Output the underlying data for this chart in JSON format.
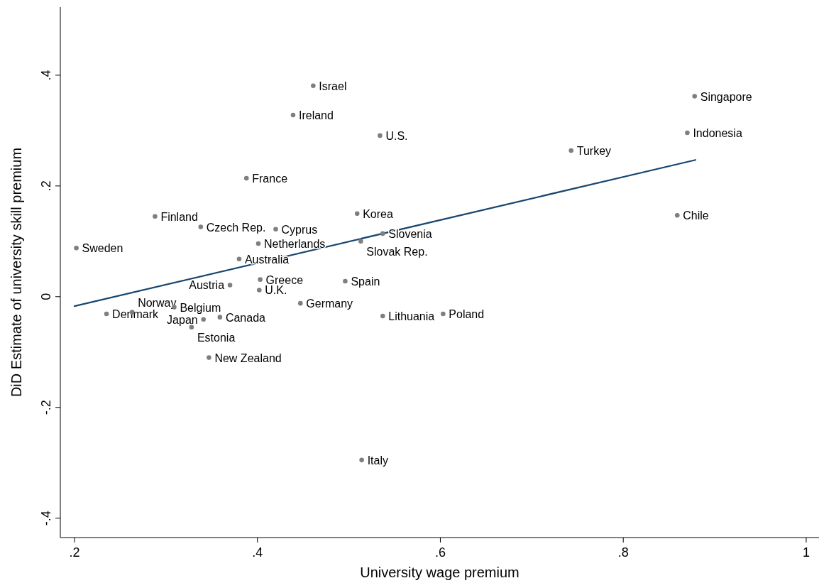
{
  "chart_data": {
    "type": "scatter",
    "xlabel": "University wage premium",
    "ylabel": "DiD Estimate of university skill premium",
    "xlim": [
      0.1845,
      1.014
    ],
    "ylim": [
      -0.435,
      0.523
    ],
    "xticks": [
      {
        "value": 0.2,
        "label": ".2"
      },
      {
        "value": 0.4,
        "label": ".4"
      },
      {
        "value": 0.6,
        "label": ".6"
      },
      {
        "value": 0.8,
        "label": ".8"
      },
      1
    ],
    "yticks": [
      {
        "value": -0.4,
        "label": "-.4"
      },
      {
        "value": -0.2,
        "label": "-.2"
      },
      0,
      {
        "value": 0.2,
        "label": ".2"
      },
      {
        "value": 0.4,
        "label": ".4"
      }
    ],
    "grid": false,
    "marker": "circle",
    "series": [
      {
        "color": "#7f7f7f",
        "x": [
          0.461,
          0.439,
          0.534,
          0.388,
          0.878,
          0.87,
          0.743,
          0.859,
          0.288,
          0.509,
          0.338,
          0.42,
          0.202,
          0.537,
          0.401,
          0.513,
          0.38,
          0.403,
          0.496,
          0.37,
          0.402,
          0.447,
          0.309,
          0.235,
          0.263,
          0.359,
          0.341,
          0.537,
          0.603,
          0.328,
          0.347,
          0.514
        ],
        "values": [
          0.381,
          0.328,
          0.291,
          0.214,
          0.362,
          0.296,
          0.264,
          0.147,
          0.145,
          0.15,
          0.126,
          0.122,
          0.088,
          0.114,
          0.096,
          0.1,
          0.068,
          0.031,
          0.028,
          0.021,
          0.012,
          -0.012,
          -0.019,
          -0.031,
          -0.028,
          -0.037,
          -0.041,
          -0.035,
          -0.031,
          -0.055,
          -0.11,
          -0.295
        ]
      },
      {
        "type": "line",
        "color": "#1a476f",
        "x": [
          0.2,
          0.879
        ],
        "values": [
          -0.017,
          0.247
        ],
        "marker": "none",
        "line_style": "solid"
      }
    ],
    "annotations": [
      {
        "text": "Israel",
        "x": 0.461,
        "y": 0.381
      },
      {
        "text": "Ireland",
        "x": 0.439,
        "y": 0.328
      },
      {
        "text": "U.S.",
        "x": 0.534,
        "y": 0.291
      },
      {
        "text": "France",
        "x": 0.388,
        "y": 0.214
      },
      {
        "text": "Singapore",
        "x": 0.878,
        "y": 0.362
      },
      {
        "text": "Indonesia",
        "x": 0.87,
        "y": 0.296
      },
      {
        "text": "Turkey",
        "x": 0.743,
        "y": 0.264
      },
      {
        "text": "Chile",
        "x": 0.859,
        "y": 0.147
      },
      {
        "text": "Finland",
        "x": 0.288,
        "y": 0.145
      },
      {
        "text": "Korea",
        "x": 0.509,
        "y": 0.15
      },
      {
        "text": "Czech Rep.",
        "x": 0.338,
        "y": 0.126
      },
      {
        "text": "Cyprus",
        "x": 0.42,
        "y": 0.122
      },
      {
        "text": "Sweden",
        "x": 0.202,
        "y": 0.088
      },
      {
        "text": "Slovenia",
        "x": 0.537,
        "y": 0.114
      },
      {
        "text": "Netherlands",
        "x": 0.401,
        "y": 0.096
      },
      {
        "text": "Slovak Rep.",
        "x": 0.513,
        "y": 0.1
      },
      {
        "text": "Australia",
        "x": 0.38,
        "y": 0.068
      },
      {
        "text": "Greece",
        "x": 0.403,
        "y": 0.031
      },
      {
        "text": "Spain",
        "x": 0.496,
        "y": 0.028
      },
      {
        "text": "Austria",
        "x": 0.37,
        "y": 0.021
      },
      {
        "text": "U.K.",
        "x": 0.402,
        "y": 0.012
      },
      {
        "text": "Germany",
        "x": 0.447,
        "y": -0.012
      },
      {
        "text": "Belgium",
        "x": 0.309,
        "y": -0.019
      },
      {
        "text": "Denmark",
        "x": 0.235,
        "y": -0.031
      },
      {
        "text": "Norway",
        "x": 0.263,
        "y": -0.028
      },
      {
        "text": "Canada",
        "x": 0.359,
        "y": -0.037
      },
      {
        "text": "Japan",
        "x": 0.341,
        "y": -0.041
      },
      {
        "text": "Lithuania",
        "x": 0.537,
        "y": -0.035
      },
      {
        "text": "Poland",
        "x": 0.603,
        "y": -0.031
      },
      {
        "text": "Estonia",
        "x": 0.328,
        "y": -0.055
      },
      {
        "text": "New Zealand",
        "x": 0.347,
        "y": -0.11
      },
      {
        "text": "Italy",
        "x": 0.514,
        "y": -0.295
      }
    ]
  }
}
